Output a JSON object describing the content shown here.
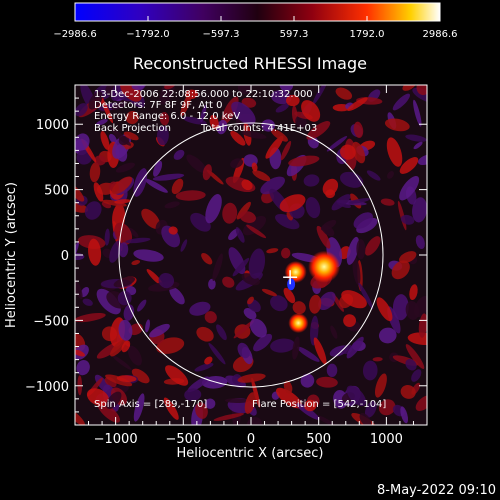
{
  "chart_data": {
    "type": "heatmap",
    "title": "Reconstructed RHESSI Image",
    "xlabel": "Heliocentric X (arcsec)",
    "ylabel": "Heliocentric Y (arcsec)",
    "xlim": [
      -1300,
      1300
    ],
    "ylim": [
      -1300,
      1300
    ],
    "xticks": [
      -1000,
      -500,
      0,
      500,
      1000
    ],
    "yticks": [
      -1000,
      -500,
      0,
      500,
      1000
    ],
    "xtick_labels": [
      "−1000",
      "−500",
      "0",
      "500",
      "1000"
    ],
    "ytick_labels": [
      "−1000",
      "−500",
      "0",
      "500",
      "1000"
    ],
    "colorbar": {
      "min": -2986.6,
      "max": 2986.6,
      "ticks": [
        -2986.6,
        -1792.0,
        -597.3,
        597.3,
        1792.0,
        2986.6
      ],
      "tick_labels": [
        "−2986.6",
        "−1792.0",
        "−597.3",
        "597.3",
        "1792.0",
        "2986.6"
      ],
      "colors": [
        "#0000ff",
        "#4a00a0",
        "#3a0a30",
        "#7a0010",
        "#ff2000",
        "#ffe000",
        "#ffffff"
      ]
    },
    "annotations": {
      "time_range": "13-Dec-2006 22:08:56.000 to 22:10:32.000",
      "detectors": "Detectors: 7F 8F 9F, Att 0",
      "energy": "Energy Range: 6.0 - 12.0 keV",
      "method": "Back Projection",
      "counts": "Total counts: 4.41E+03",
      "spin_axis": "Spin Axis = [289,-170]",
      "flare_position": "Flare Position = [542,-104]"
    },
    "solar_disk_radius_arcsec": 975,
    "spin_axis": [
      289,
      -170
    ],
    "sources": [
      {
        "x": 540,
        "y": -90,
        "value": 2986.6
      },
      {
        "x": 330,
        "y": -130,
        "value": 1500
      },
      {
        "x": 350,
        "y": -520,
        "value": 1200
      }
    ]
  },
  "footer_timestamp": "8-May-2022 09:10"
}
